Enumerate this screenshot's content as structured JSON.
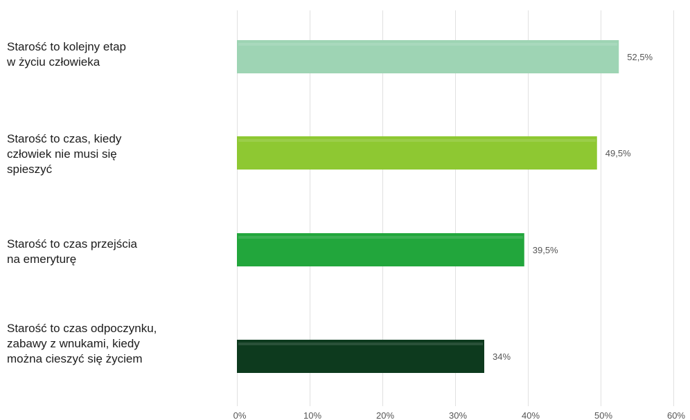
{
  "chart_data": {
    "type": "bar",
    "orientation": "horizontal",
    "categories": [
      "Starość to kolejny etap\nw życiu człowieka",
      "Starość to czas, kiedy\nczłowiek nie musi się\nspieszyć",
      "Starość  to  czas  przejścia\nna emeryturę",
      "Starość to czas odpoczynku,\nzabawy z wnukami, kiedy\nmożna cieszyć się życiem"
    ],
    "values": [
      52.5,
      49.5,
      39.5,
      34
    ],
    "value_labels": [
      "52,5%",
      "49,5%",
      "39,5%",
      "34%"
    ],
    "bar_colors": [
      "#9ed4b4",
      "#8ec832",
      "#22a63c",
      "#0d3a1e"
    ],
    "x_ticks": [
      0,
      10,
      20,
      30,
      40,
      50,
      60
    ],
    "x_tick_labels": [
      "0%",
      "10%",
      "20%",
      "30%",
      "40%",
      "50%",
      "60%"
    ],
    "xlim": [
      0,
      60
    ],
    "grid": true,
    "legend": "none"
  }
}
